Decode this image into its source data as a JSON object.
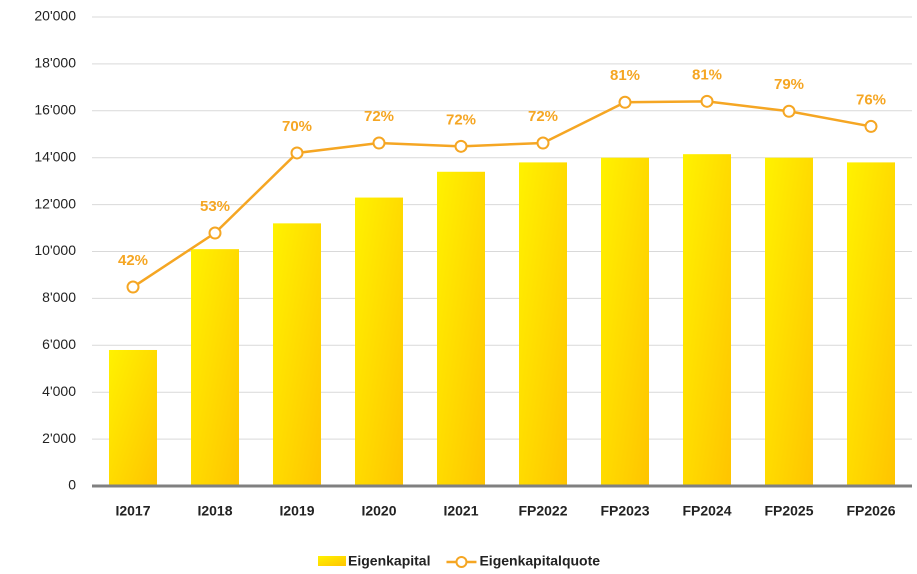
{
  "chart_data": {
    "type": "bar",
    "categories": [
      "I2017",
      "I2018",
      "I2019",
      "I2020",
      "I2021",
      "FP2022",
      "FP2023",
      "FP2024",
      "FP2025",
      "FP2026"
    ],
    "series": [
      {
        "name": "Eigenkapital",
        "type": "bar",
        "color": "#ffd700",
        "values": [
          5800,
          10100,
          11200,
          12300,
          13400,
          13800,
          14000,
          14150,
          14000,
          13800
        ]
      },
      {
        "name": "Eigenkapitalquote",
        "type": "line",
        "axis": "y2",
        "color": "#f5a623",
        "values": [
          42.0,
          53.4,
          70.3,
          72.4,
          71.7,
          72.4,
          81.0,
          81.2,
          79.1,
          75.9
        ],
        "value_labels": [
          "42%",
          "53%",
          "70%",
          "72%",
          "72%",
          "72%",
          "81%",
          "81%",
          "79%",
          "76%"
        ]
      }
    ],
    "ylim": [
      0,
      20000
    ],
    "yticks": [
      0,
      {
        "value": 2000,
        "label": "2'000"
      },
      {
        "value": 4000,
        "label": "4'000"
      },
      {
        "value": 6000,
        "label": "6'000"
      },
      {
        "value": 8000,
        "label": "8'000"
      },
      {
        "value": 10000,
        "label": "10'000"
      },
      {
        "value": 12000,
        "label": "12'000"
      },
      {
        "value": 14000,
        "label": "14'000"
      },
      {
        "value": 16000,
        "label": "16'000"
      },
      {
        "value": 18000,
        "label": "18'000"
      },
      {
        "value": 20000,
        "label": "20'000"
      }
    ],
    "y2lim": [
      0,
      99
    ],
    "grid": true
  }
}
